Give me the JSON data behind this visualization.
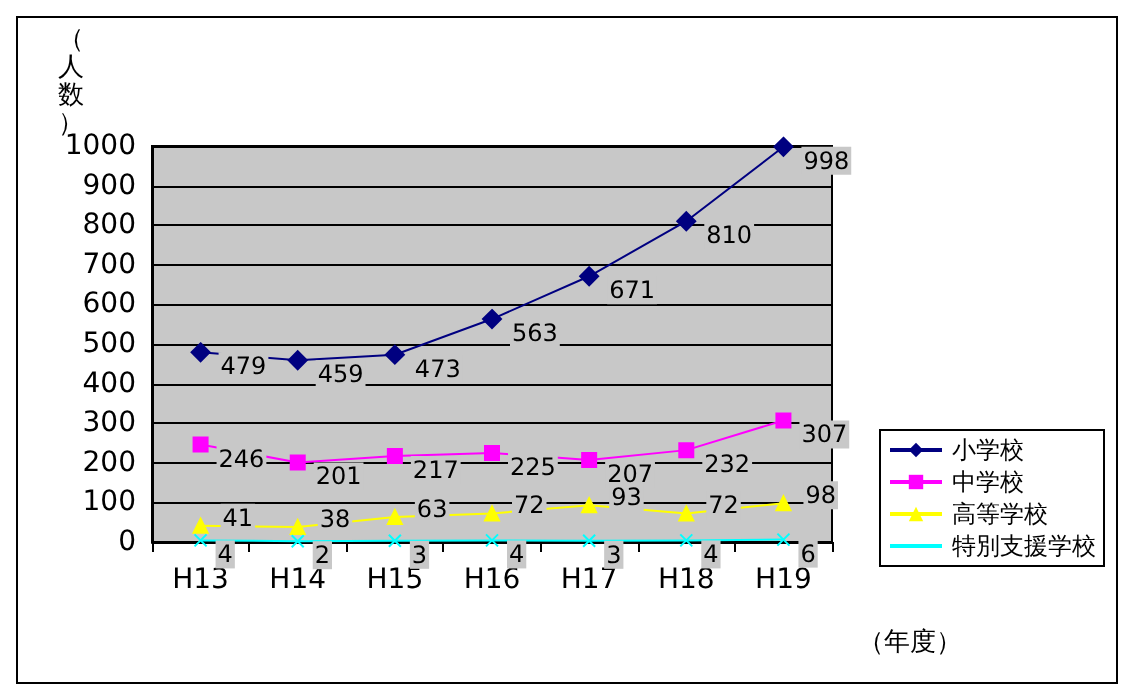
{
  "chart_data": {
    "type": "line",
    "ylabel": "（人数）",
    "xlabel": "（年度）",
    "categories": [
      "H13",
      "H14",
      "H15",
      "H16",
      "H17",
      "H18",
      "H19"
    ],
    "series": [
      {
        "name": "小学校",
        "color": "#000080",
        "marker": "diamond",
        "values": [
          479,
          459,
          473,
          563,
          671,
          810,
          998
        ]
      },
      {
        "name": "中学校",
        "color": "#ff00ff",
        "marker": "square",
        "values": [
          246,
          201,
          217,
          225,
          207,
          232,
          307
        ]
      },
      {
        "name": "高等学校",
        "color": "#ffff00",
        "marker": "triangle",
        "values": [
          41,
          38,
          63,
          72,
          93,
          72,
          98
        ]
      },
      {
        "name": "特別支援学校",
        "color": "#00ffff",
        "marker": "cross",
        "values": [
          4,
          2,
          3,
          4,
          3,
          4,
          6
        ]
      }
    ],
    "ylim": [
      0,
      1000
    ],
    "yticks": [
      0,
      100,
      200,
      300,
      400,
      500,
      600,
      700,
      800,
      900,
      1000
    ],
    "grid": "y",
    "legend": "right",
    "data_labels": true
  }
}
